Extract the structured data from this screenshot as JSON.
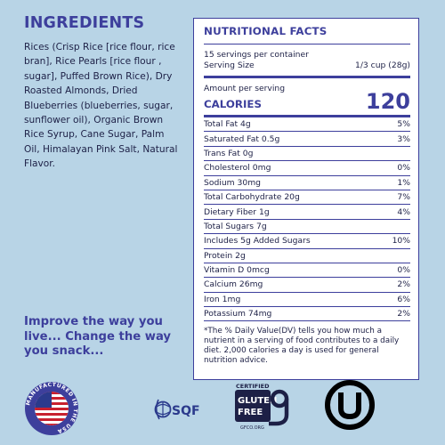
{
  "ingredients": {
    "title": "INGREDIENTS",
    "text": "Rices (Crisp Rice [rice flour, rice bran], Rice Pearls [rice flour , sugar], Puffed Brown Rice), Dry Roasted Almonds, Dried Blueberries (blueberries, sugar, sunflower oil), Organic Brown Rice Syrup, Cane Sugar, Palm Oil, Himalayan Pink Salt, Natural Flavor."
  },
  "tagline": "Improve the way you live... Change the way you snack...",
  "nutrition": {
    "title": "NUTRITIONAL FACTS",
    "servings": "15 servings per container",
    "serving_size_label": "Serving Size",
    "serving_size_value": "1/3 cup (28g)",
    "amount_per_serving": "Amount per serving",
    "calories_label": "CALORIES",
    "calories_value": "120",
    "rows": [
      {
        "label": "Total Fat 4g",
        "dv": "5%"
      },
      {
        "label": "Saturated Fat 0.5g",
        "dv": "3%"
      },
      {
        "label": "Trans Fat 0g",
        "dv": ""
      },
      {
        "label": "Cholesterol 0mg",
        "dv": "0%"
      },
      {
        "label": "Sodium 30mg",
        "dv": "1%"
      },
      {
        "label": "Total Carbohydrate 20g",
        "dv": "7%"
      },
      {
        "label": "Dietary Fiber 1g",
        "dv": "4%"
      },
      {
        "label": "Total Sugars 7g",
        "dv": ""
      },
      {
        "label": "Includes 5g Added Sugars",
        "dv": "10%"
      },
      {
        "label": "Protein 2g",
        "dv": ""
      },
      {
        "label": "Vitamin D 0mcg",
        "dv": "0%"
      },
      {
        "label": "Calcium 26mg",
        "dv": "2%"
      },
      {
        "label": "Iron 1mg",
        "dv": "6%"
      },
      {
        "label": "Potassium 74mg",
        "dv": "2%"
      }
    ],
    "footnote": "*The % Daily Value(DV) tells you how much a nutrient in a serving of food contributes to a daily diet. 2,000 calories a day is used for general nutrition advice."
  },
  "badges": {
    "usa": {
      "icon": "usa-flag-icon",
      "text": "MANUFACTURED IN THE USA"
    },
    "sqf": {
      "icon": "sqf-logo-icon",
      "text": "SQF"
    },
    "gluten_free": {
      "icon": "gluten-free-icon",
      "certified": "CERTIFIED",
      "line1": "GLUTEN",
      "line2": "FREE",
      "site": "GFCO.ORG"
    },
    "kosher": {
      "icon": "kosher-ou-icon"
    }
  },
  "colors": {
    "background": "#b8d4e6",
    "accent": "#3d3f9c",
    "text": "#1d2046"
  }
}
